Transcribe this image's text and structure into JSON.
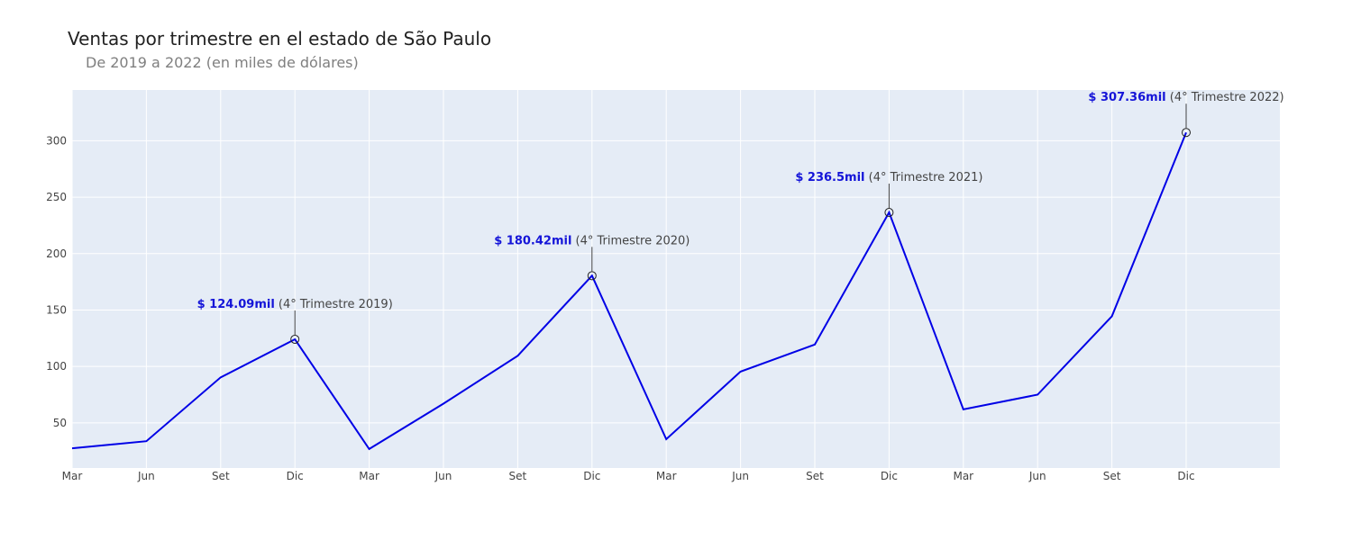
{
  "chart_data": {
    "type": "line",
    "title": "Ventas por trimestre en el estado de São Paulo",
    "subtitle": "De 2019 a 2022 (en miles de dólares)",
    "x": [
      "Mar",
      "Jun",
      "Set",
      "Dic",
      "Mar",
      "Jun",
      "Set",
      "Dic",
      "Mar",
      "Jun",
      "Set",
      "Dic",
      "Mar",
      "Jun",
      "Set",
      "Dic"
    ],
    "series": [
      {
        "values": [
          27.5,
          33.8,
          90.3,
          124.09,
          26.8,
          67.0,
          109.5,
          180.42,
          35.5,
          95.4,
          119.4,
          236.5,
          62.0,
          75.0,
          144.5,
          307.36
        ]
      }
    ],
    "ylim": [
      10,
      345
    ],
    "yticks": [
      50,
      100,
      150,
      200,
      250,
      300
    ],
    "grid": true,
    "line_color": "#0000e6",
    "plot_bg": "#e5ecf6",
    "value_color": "#1414d8",
    "annotations": [
      {
        "index": 3,
        "value_label": "$ 124.09mil",
        "period_label": " (4° Trimestre 2019)"
      },
      {
        "index": 7,
        "value_label": "$ 180.42mil",
        "period_label": " (4° Trimestre 2020)"
      },
      {
        "index": 11,
        "value_label": "$ 236.5mil",
        "period_label": " (4° Trimestre 2021)"
      },
      {
        "index": 15,
        "value_label": "$ 307.36mil",
        "period_label": " (4° Trimestre 2022)"
      }
    ]
  }
}
